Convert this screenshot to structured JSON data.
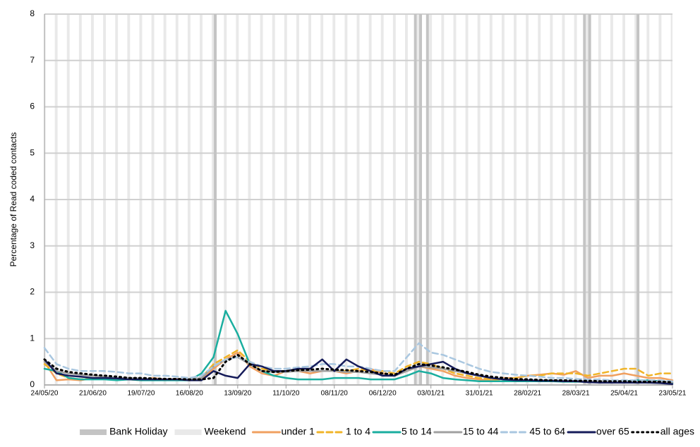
{
  "chart_data": {
    "type": "line",
    "y_label": "Percentage of Read coded contacts",
    "x": [
      "24/05/20",
      "31/05/20",
      "07/06/20",
      "14/06/20",
      "21/06/20",
      "28/06/20",
      "05/07/20",
      "12/07/20",
      "19/07/20",
      "26/07/20",
      "02/08/20",
      "09/08/20",
      "16/08/20",
      "23/08/20",
      "30/08/20",
      "06/09/20",
      "13/09/20",
      "20/09/20",
      "27/09/20",
      "04/10/20",
      "11/10/20",
      "18/10/20",
      "25/10/20",
      "01/11/20",
      "08/11/20",
      "15/11/20",
      "22/11/20",
      "29/11/20",
      "06/12/20",
      "13/12/20",
      "20/12/20",
      "27/12/20",
      "03/01/21",
      "10/01/21",
      "17/01/21",
      "24/01/21",
      "31/01/21",
      "07/02/21",
      "14/02/21",
      "21/02/21",
      "28/02/21",
      "07/03/21",
      "14/03/21",
      "21/03/21",
      "28/03/21",
      "04/04/21",
      "11/04/21",
      "18/04/21",
      "25/04/21",
      "02/05/21",
      "09/05/21",
      "16/05/21",
      "23/05/21"
    ],
    "xticks": [
      "24/05/20",
      "21/06/20",
      "19/07/20",
      "16/08/20",
      "13/09/20",
      "11/10/20",
      "08/11/20",
      "06/12/20",
      "03/01/21",
      "31/01/21",
      "28/02/21",
      "28/03/21",
      "25/04/21",
      "23/05/21"
    ],
    "ylim": [
      0,
      8
    ],
    "yticks": [
      0,
      1,
      2,
      3,
      4,
      5,
      6,
      7,
      8
    ],
    "grid": true,
    "bands": [
      {
        "name": "Bank Holiday",
        "color": "#c4c4c4",
        "dates": [
          "31/08/20",
          "25/12/20",
          "28/12/20",
          "01/01/21",
          "02/04/21",
          "05/04/21",
          "03/05/21"
        ]
      },
      {
        "name": "Weekend",
        "color": "#e9e9e9"
      }
    ],
    "series": [
      {
        "name": "under 1",
        "color": "#f0a060",
        "dash": "solid",
        "values": [
          0.5,
          0.1,
          0.12,
          0.1,
          0.15,
          0.12,
          0.12,
          0.15,
          0.1,
          0.15,
          0.12,
          0.13,
          0.1,
          0.12,
          0.35,
          0.55,
          0.7,
          0.4,
          0.25,
          0.2,
          0.3,
          0.3,
          0.25,
          0.3,
          0.3,
          0.25,
          0.3,
          0.35,
          0.25,
          0.2,
          0.3,
          0.4,
          0.35,
          0.3,
          0.2,
          0.15,
          0.12,
          0.1,
          0.15,
          0.15,
          0.2,
          0.22,
          0.25,
          0.22,
          0.3,
          0.15,
          0.2,
          0.2,
          0.25,
          0.2,
          0.15,
          0.15,
          0.1
        ]
      },
      {
        "name": "1 to 4",
        "color": "#f0b428",
        "dash": "dashed",
        "values": [
          0.45,
          0.25,
          0.15,
          0.12,
          0.15,
          0.15,
          0.12,
          0.12,
          0.1,
          0.12,
          0.1,
          0.12,
          0.1,
          0.15,
          0.45,
          0.6,
          0.75,
          0.5,
          0.35,
          0.3,
          0.3,
          0.35,
          0.3,
          0.3,
          0.3,
          0.3,
          0.35,
          0.3,
          0.3,
          0.25,
          0.4,
          0.5,
          0.45,
          0.35,
          0.25,
          0.2,
          0.15,
          0.12,
          0.12,
          0.15,
          0.2,
          0.2,
          0.25,
          0.25,
          0.25,
          0.2,
          0.25,
          0.3,
          0.35,
          0.35,
          0.2,
          0.25,
          0.25
        ]
      },
      {
        "name": "5 to 14",
        "color": "#1aae9f",
        "dash": "solid",
        "values": [
          0.35,
          0.3,
          0.15,
          0.12,
          0.12,
          0.12,
          0.1,
          0.12,
          0.1,
          0.1,
          0.1,
          0.1,
          0.1,
          0.25,
          0.6,
          1.6,
          1.1,
          0.45,
          0.3,
          0.2,
          0.15,
          0.12,
          0.12,
          0.12,
          0.15,
          0.15,
          0.15,
          0.12,
          0.12,
          0.12,
          0.2,
          0.3,
          0.25,
          0.15,
          0.12,
          0.1,
          0.08,
          0.08,
          0.08,
          0.08,
          0.08,
          0.08,
          0.08,
          0.07,
          0.07,
          0.07,
          0.07,
          0.08,
          0.08,
          0.1,
          0.1,
          0.08,
          0.05
        ]
      },
      {
        "name": "15 to 44",
        "color": "#a0a0a0",
        "dash": "solid",
        "values": [
          0.5,
          0.3,
          0.25,
          0.22,
          0.2,
          0.18,
          0.15,
          0.15,
          0.14,
          0.13,
          0.12,
          0.12,
          0.12,
          0.15,
          0.4,
          0.55,
          0.6,
          0.45,
          0.3,
          0.28,
          0.28,
          0.3,
          0.3,
          0.3,
          0.3,
          0.28,
          0.28,
          0.25,
          0.22,
          0.2,
          0.3,
          0.4,
          0.38,
          0.35,
          0.3,
          0.25,
          0.2,
          0.15,
          0.13,
          0.12,
          0.1,
          0.1,
          0.1,
          0.09,
          0.09,
          0.08,
          0.08,
          0.08,
          0.08,
          0.07,
          0.07,
          0.07,
          0.06
        ]
      },
      {
        "name": "45 to 64",
        "color": "#a9c7e0",
        "dash": "dashed",
        "values": [
          0.8,
          0.45,
          0.35,
          0.3,
          0.3,
          0.3,
          0.28,
          0.25,
          0.25,
          0.2,
          0.2,
          0.18,
          0.15,
          0.2,
          0.4,
          0.55,
          0.6,
          0.5,
          0.4,
          0.35,
          0.35,
          0.38,
          0.4,
          0.45,
          0.45,
          0.4,
          0.4,
          0.35,
          0.3,
          0.3,
          0.6,
          0.9,
          0.7,
          0.65,
          0.55,
          0.45,
          0.35,
          0.28,
          0.25,
          0.22,
          0.2,
          0.18,
          0.15,
          0.15,
          0.13,
          0.12,
          0.12,
          0.1,
          0.1,
          0.1,
          0.1,
          0.1,
          0.08
        ]
      },
      {
        "name": "over 65",
        "color": "#161c5a",
        "dash": "solid",
        "values": [
          0.55,
          0.25,
          0.2,
          0.18,
          0.15,
          0.15,
          0.14,
          0.12,
          0.12,
          0.12,
          0.12,
          0.12,
          0.1,
          0.1,
          0.3,
          0.2,
          0.15,
          0.45,
          0.4,
          0.3,
          0.3,
          0.35,
          0.35,
          0.55,
          0.3,
          0.55,
          0.4,
          0.3,
          0.2,
          0.2,
          0.35,
          0.4,
          0.45,
          0.5,
          0.35,
          0.25,
          0.2,
          0.15,
          0.12,
          0.1,
          0.1,
          0.09,
          0.09,
          0.08,
          0.08,
          0.06,
          0.05,
          0.05,
          0.05,
          0.05,
          0.05,
          0.04,
          0.02
        ]
      },
      {
        "name": "all ages",
        "color": "#000000",
        "dash": "dotted",
        "values": [
          0.55,
          0.35,
          0.28,
          0.25,
          0.22,
          0.2,
          0.18,
          0.15,
          0.15,
          0.14,
          0.13,
          0.13,
          0.12,
          0.12,
          0.15,
          0.5,
          0.65,
          0.45,
          0.3,
          0.28,
          0.3,
          0.32,
          0.33,
          0.35,
          0.33,
          0.32,
          0.3,
          0.28,
          0.25,
          0.22,
          0.35,
          0.45,
          0.42,
          0.38,
          0.33,
          0.28,
          0.22,
          0.18,
          0.15,
          0.13,
          0.12,
          0.11,
          0.1,
          0.1,
          0.09,
          0.09,
          0.08,
          0.08,
          0.08,
          0.07,
          0.07,
          0.07,
          0.06
        ]
      }
    ]
  }
}
